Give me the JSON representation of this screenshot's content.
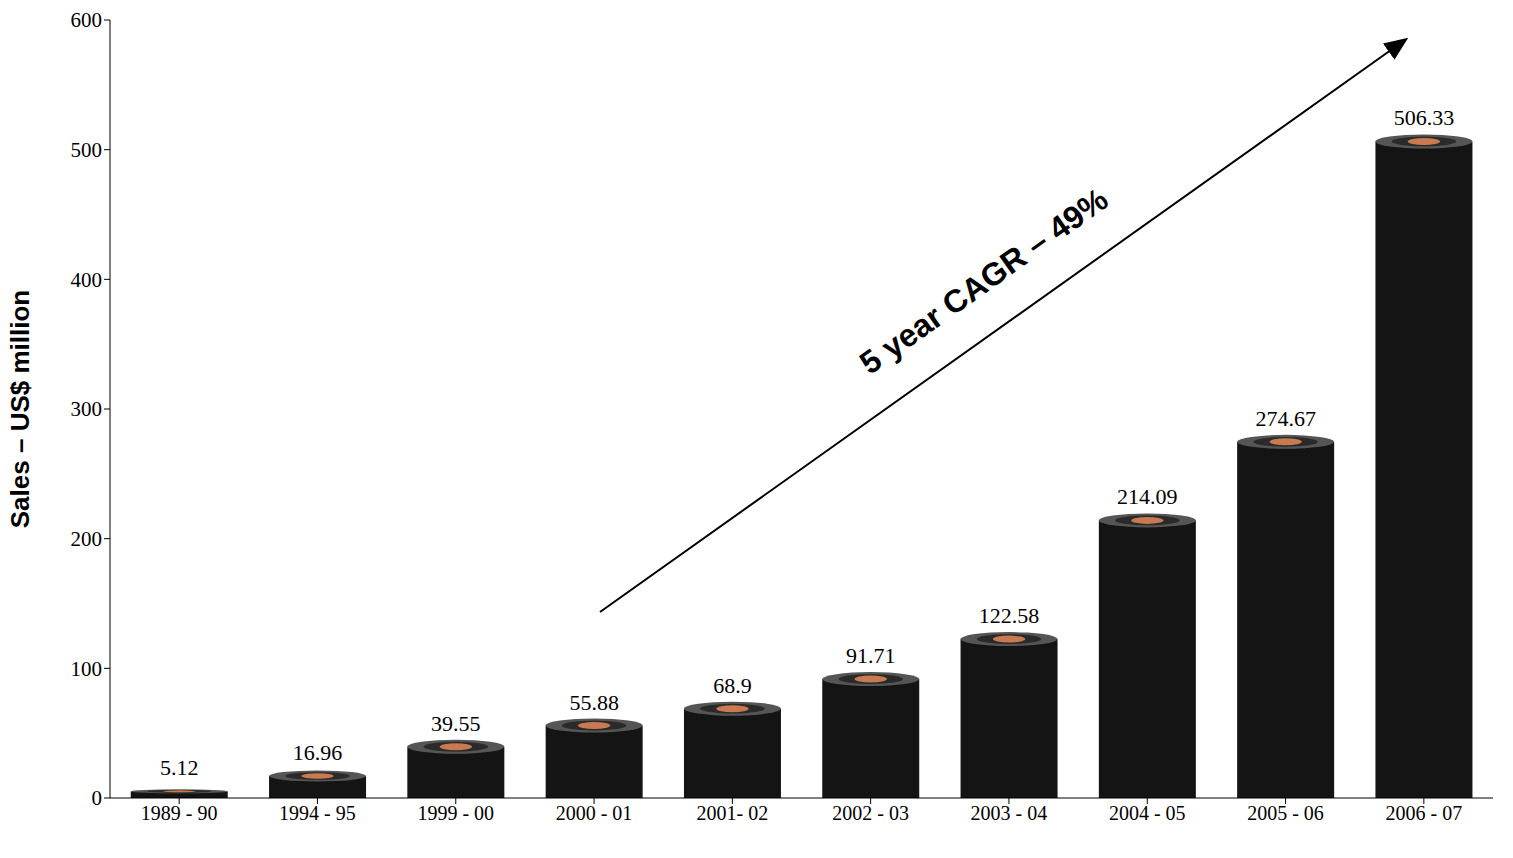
{
  "chart_data": {
    "type": "bar",
    "y_label": "Sales – US$ million",
    "annotation": "5 year CAGR – 49%",
    "categories": [
      "1989 - 90",
      "1994 - 95",
      "1999 - 00",
      "2000 - 01",
      "2001- 02",
      "2002 - 03",
      "2003 - 04",
      "2004 - 05",
      "2005 - 06",
      "2006 - 07"
    ],
    "values": [
      5.12,
      16.96,
      39.55,
      55.88,
      68.9,
      91.71,
      122.58,
      214.09,
      274.67,
      506.33
    ],
    "color": "#141414",
    "ylim": [
      0,
      600
    ],
    "yticks": [
      0,
      100,
      200,
      300,
      400,
      500,
      600
    ],
    "grid": false,
    "data_labels": true
  }
}
